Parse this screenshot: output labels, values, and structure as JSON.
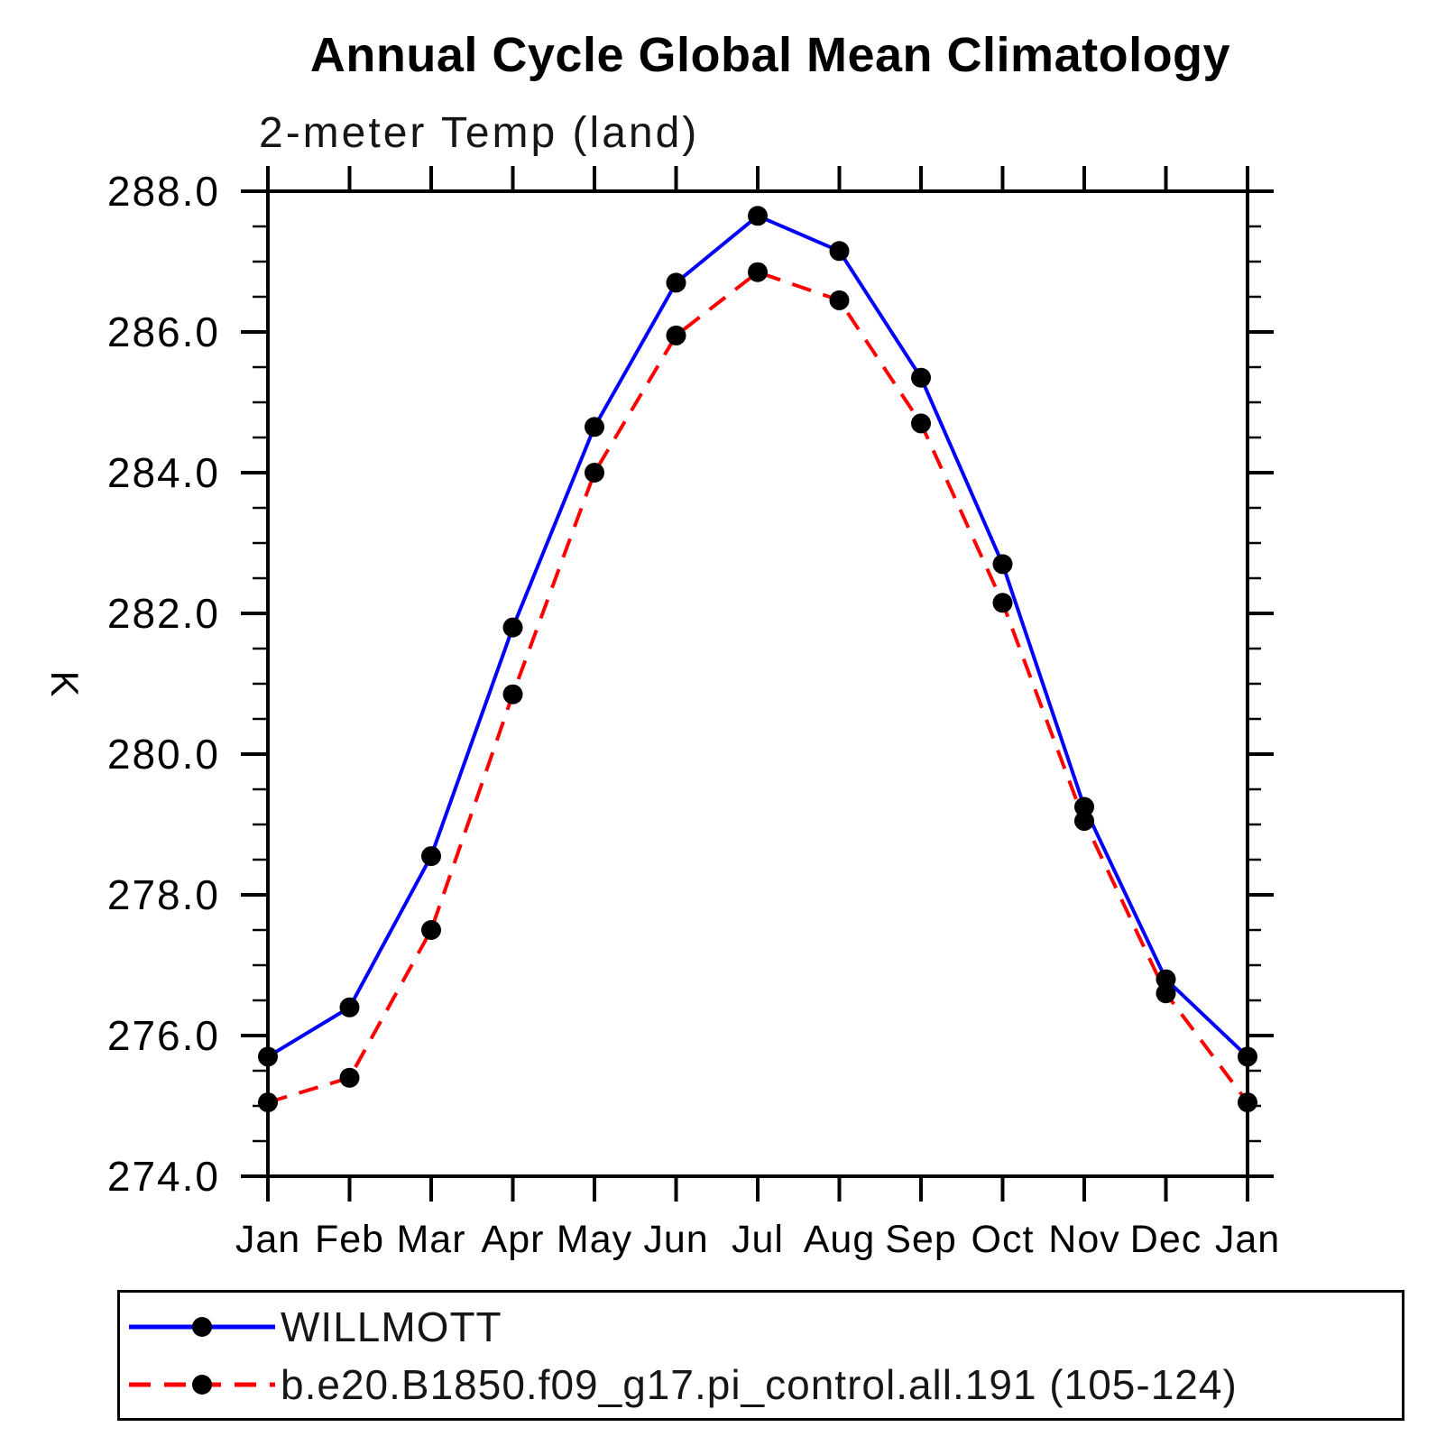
{
  "page": {
    "background": "#ffffff",
    "text_color": "#000000"
  },
  "chart_data": {
    "type": "line",
    "title": "Annual Cycle Global Mean Climatology",
    "subtitle": "2-meter Temp (land)",
    "xlabel": "",
    "ylabel": "K",
    "ylim": [
      274.0,
      288.0
    ],
    "ytick_interval": 2.0,
    "yminor_interval": 0.5,
    "ytick_labels": [
      "288.0",
      "286.0",
      "284.0",
      "282.0",
      "280.0",
      "278.0",
      "276.0",
      "274.0"
    ],
    "x_labels": [
      "Jan",
      "Feb",
      "Mar",
      "Apr",
      "May",
      "Jun",
      "Jul",
      "Aug",
      "Sep",
      "Oct",
      "Nov",
      "Dec",
      "Jan"
    ],
    "grid": false,
    "frame_color": "#000000",
    "marker_color": "#000000",
    "legend_position": "bottom-left-box",
    "series": [
      {
        "name": "WILLMOTT",
        "color": "#0000ff",
        "style": "solid",
        "marker": "filled-circle",
        "values": [
          275.7,
          276.4,
          278.55,
          281.8,
          284.65,
          286.7,
          287.65,
          287.15,
          285.35,
          282.7,
          279.25,
          276.8,
          275.7
        ]
      },
      {
        "name": "b.e20.B1850.f09_g17.pi_control.all.191 (105-124)",
        "color": "#ff0000",
        "style": "dashed",
        "marker": "filled-circle",
        "values": [
          275.05,
          275.4,
          277.5,
          280.85,
          284.0,
          285.95,
          286.85,
          286.45,
          284.7,
          282.15,
          279.05,
          276.6,
          275.05
        ]
      }
    ]
  }
}
